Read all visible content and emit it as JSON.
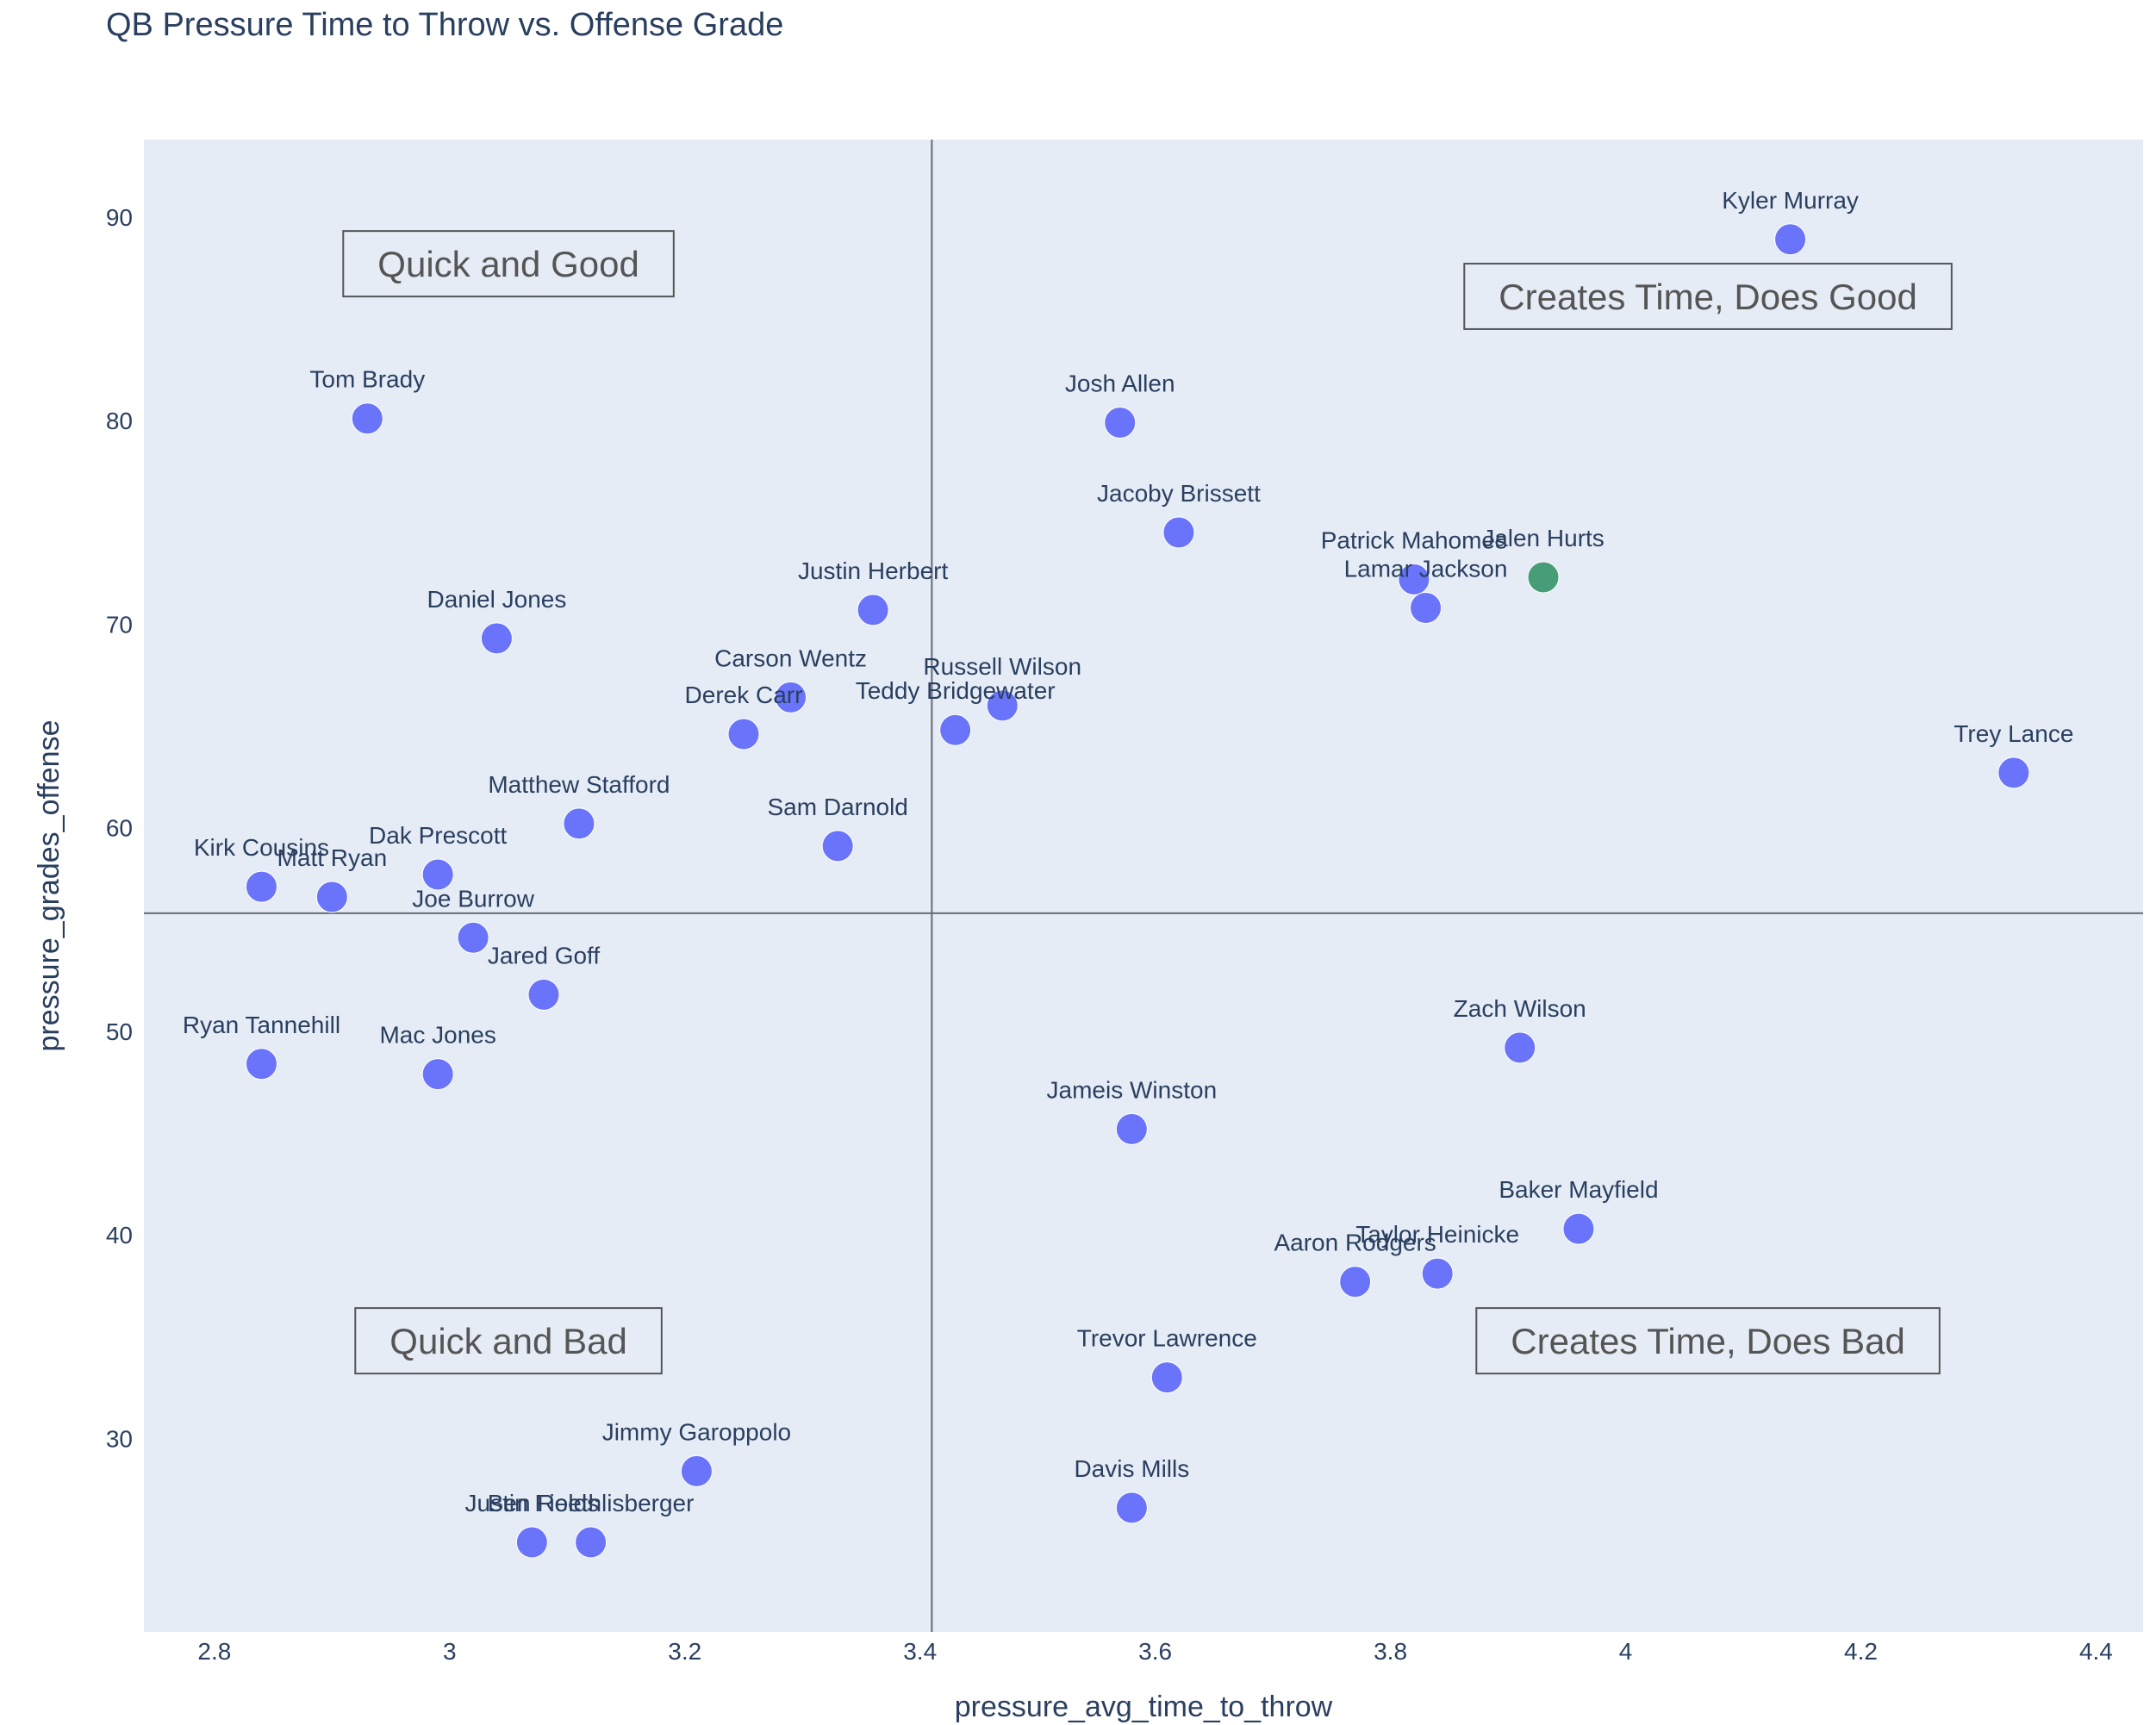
{
  "chart_data": {
    "type": "scatter",
    "title": "QB Pressure Time to Throw vs. Offense Grade",
    "xlabel": "pressure_avg_time_to_throw",
    "ylabel": "pressure_grades_offense",
    "xlim": [
      2.74,
      4.44
    ],
    "ylim": [
      20.5,
      93.8
    ],
    "xticks": [
      "2.8",
      "3",
      "3.2",
      "3.4",
      "3.6",
      "3.8",
      "4",
      "4.2",
      "4.4"
    ],
    "yticks": [
      "30",
      "40",
      "50",
      "60",
      "70",
      "80",
      "90"
    ],
    "reference_lines": {
      "x": 3.41,
      "y": 55.8
    },
    "colors": {
      "default": "#636efa",
      "highlight": "#3d9970",
      "plot_bg": "#e5ecf6"
    },
    "quadrant_labels": [
      {
        "text": "Quick and Good",
        "x": 3.05,
        "y": 87.7
      },
      {
        "text": "Creates Time, Does Good",
        "x": 4.07,
        "y": 86.1
      },
      {
        "text": "Quick and Bad",
        "x": 3.05,
        "y": 34.8
      },
      {
        "text": "Creates Time, Does Bad",
        "x": 4.07,
        "y": 34.8
      }
    ],
    "points": [
      {
        "name": "Kyler Murray",
        "x": 4.14,
        "y": 88.9
      },
      {
        "name": "Tom Brady",
        "x": 2.93,
        "y": 80.1
      },
      {
        "name": "Josh Allen",
        "x": 3.57,
        "y": 79.9
      },
      {
        "name": "Jacoby Brissett",
        "x": 3.62,
        "y": 74.5
      },
      {
        "name": "Patrick Mahomes",
        "x": 3.82,
        "y": 72.2
      },
      {
        "name": "Jalen Hurts",
        "x": 3.93,
        "y": 72.3,
        "highlight": true
      },
      {
        "name": "Lamar Jackson",
        "x": 3.83,
        "y": 70.8
      },
      {
        "name": "Justin Herbert",
        "x": 3.36,
        "y": 70.7
      },
      {
        "name": "Daniel Jones",
        "x": 3.04,
        "y": 69.3
      },
      {
        "name": "Carson Wentz",
        "x": 3.29,
        "y": 66.4
      },
      {
        "name": "Russell Wilson",
        "x": 3.47,
        "y": 66.0
      },
      {
        "name": "Derek Carr",
        "x": 3.25,
        "y": 64.6
      },
      {
        "name": "Teddy Bridgewater",
        "x": 3.43,
        "y": 64.8
      },
      {
        "name": "Trey Lance",
        "x": 4.33,
        "y": 62.7
      },
      {
        "name": "Matthew Stafford",
        "x": 3.11,
        "y": 60.2
      },
      {
        "name": "Sam Darnold",
        "x": 3.33,
        "y": 59.1
      },
      {
        "name": "Dak Prescott",
        "x": 2.99,
        "y": 57.7
      },
      {
        "name": "Kirk Cousins",
        "x": 2.84,
        "y": 57.1
      },
      {
        "name": "Matt Ryan",
        "x": 2.9,
        "y": 56.6
      },
      {
        "name": "Joe Burrow",
        "x": 3.02,
        "y": 54.6
      },
      {
        "name": "Jared Goff",
        "x": 3.08,
        "y": 51.8
      },
      {
        "name": "Zach Wilson",
        "x": 3.91,
        "y": 49.2
      },
      {
        "name": "Ryan Tannehill",
        "x": 2.84,
        "y": 48.4
      },
      {
        "name": "Mac Jones",
        "x": 2.99,
        "y": 47.9
      },
      {
        "name": "Jameis Winston",
        "x": 3.58,
        "y": 45.2
      },
      {
        "name": "Baker Mayfield",
        "x": 3.96,
        "y": 40.3
      },
      {
        "name": "Taylor Heinicke",
        "x": 3.84,
        "y": 38.1
      },
      {
        "name": "Aaron Rodgers",
        "x": 3.77,
        "y": 37.7
      },
      {
        "name": "Trevor Lawrence",
        "x": 3.61,
        "y": 33.0
      },
      {
        "name": "Jimmy Garoppolo",
        "x": 3.21,
        "y": 28.4
      },
      {
        "name": "Davis Mills",
        "x": 3.58,
        "y": 26.6
      },
      {
        "name": "Justin Fields",
        "x": 3.07,
        "y": 24.9
      },
      {
        "name": "Ben Roethlisberger",
        "x": 3.12,
        "y": 24.9
      }
    ]
  }
}
